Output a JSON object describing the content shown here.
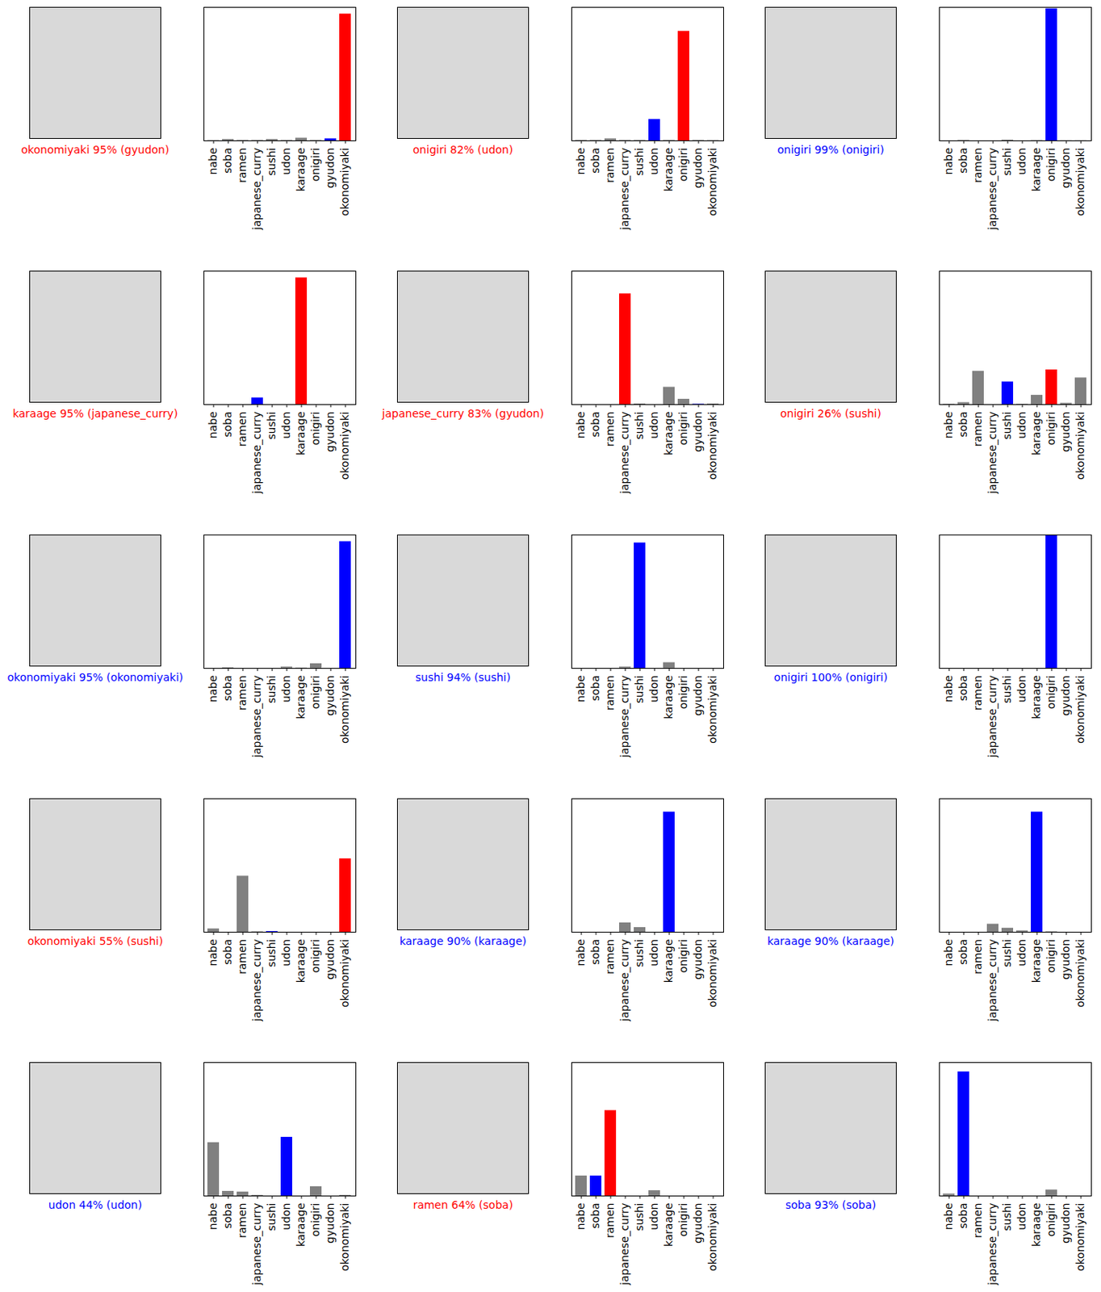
{
  "chart_data": [
    {
      "type": "bar",
      "xlabel": "okonomiyaki 95% (gyudon)",
      "categories": [
        "nabe",
        "soba",
        "ramen",
        "japanese_curry",
        "sushi",
        "udon",
        "karaage",
        "onigiri",
        "gyudon",
        "okonomiyaki"
      ],
      "values": [
        0.2,
        1,
        0.3,
        0.3,
        1,
        0.3,
        2,
        0.3,
        1.5,
        95
      ],
      "colors": [
        "#808080",
        "#808080",
        "#808080",
        "#808080",
        "#808080",
        "#808080",
        "#808080",
        "#808080",
        "#0000ff",
        "#ff0000"
      ],
      "ylim": [
        0,
        100
      ],
      "tick_labels": "x"
    },
    {
      "type": "bar",
      "xlabel": "onigiri 82% (udon)",
      "categories": [
        "nabe",
        "soba",
        "ramen",
        "japanese_curry",
        "sushi",
        "udon",
        "karaage",
        "onigiri",
        "gyudon",
        "okonomiyaki"
      ],
      "values": [
        0.3,
        0.3,
        1.5,
        0.3,
        0.3,
        16,
        0.3,
        82,
        0.3,
        0.2
      ],
      "colors": [
        "#808080",
        "#808080",
        "#808080",
        "#808080",
        "#808080",
        "#0000ff",
        "#808080",
        "#ff0000",
        "#808080",
        "#808080"
      ],
      "ylim": [
        0,
        100
      ],
      "tick_labels": "x"
    },
    {
      "type": "bar",
      "xlabel": "onigiri 99% (onigiri)",
      "categories": [
        "nabe",
        "soba",
        "ramen",
        "japanese_curry",
        "sushi",
        "udon",
        "karaage",
        "onigiri",
        "gyudon",
        "okonomiyaki"
      ],
      "values": [
        0,
        0.3,
        0,
        0,
        0.5,
        0,
        0.2,
        99,
        0.1,
        0.1
      ],
      "colors": [
        "#808080",
        "#808080",
        "#808080",
        "#808080",
        "#808080",
        "#808080",
        "#808080",
        "#0000ff",
        "#808080",
        "#808080"
      ],
      "ylim": [
        0,
        100
      ],
      "tick_labels": "x"
    },
    {
      "type": "bar",
      "xlabel": "karaage 95% (japanese_curry)",
      "categories": [
        "nabe",
        "soba",
        "ramen",
        "japanese_curry",
        "sushi",
        "udon",
        "karaage",
        "onigiri",
        "gyudon",
        "okonomiyaki"
      ],
      "values": [
        0,
        0,
        0,
        5,
        0,
        0,
        95,
        0,
        0,
        0
      ],
      "colors": [
        "#808080",
        "#808080",
        "#808080",
        "#0000ff",
        "#808080",
        "#808080",
        "#ff0000",
        "#808080",
        "#808080",
        "#808080"
      ],
      "ylim": [
        0,
        100
      ],
      "tick_labels": "x"
    },
    {
      "type": "bar",
      "xlabel": "japanese_curry 83% (gyudon)",
      "categories": [
        "nabe",
        "soba",
        "ramen",
        "japanese_curry",
        "sushi",
        "udon",
        "karaage",
        "onigiri",
        "gyudon",
        "okonomiyaki"
      ],
      "values": [
        0,
        0,
        0,
        83,
        0.5,
        0,
        13,
        4,
        0.3,
        0.5
      ],
      "colors": [
        "#808080",
        "#808080",
        "#808080",
        "#ff0000",
        "#808080",
        "#808080",
        "#808080",
        "#808080",
        "#0000ff",
        "#808080"
      ],
      "ylim": [
        0,
        100
      ],
      "tick_labels": "x"
    },
    {
      "type": "bar",
      "xlabel": "onigiri 26% (sushi)",
      "categories": [
        "nabe",
        "soba",
        "ramen",
        "japanese_curry",
        "sushi",
        "udon",
        "karaage",
        "onigiri",
        "gyudon",
        "okonomiyaki"
      ],
      "values": [
        0.3,
        1.5,
        25,
        0,
        17,
        0.3,
        7,
        26,
        1,
        20
      ],
      "colors": [
        "#808080",
        "#808080",
        "#808080",
        "#808080",
        "#0000ff",
        "#808080",
        "#808080",
        "#ff0000",
        "#808080",
        "#808080"
      ],
      "ylim": [
        0,
        100
      ],
      "tick_labels": "x"
    },
    {
      "type": "bar",
      "xlabel": "okonomiyaki 95% (okonomiyaki)",
      "categories": [
        "nabe",
        "soba",
        "ramen",
        "japanese_curry",
        "sushi",
        "udon",
        "karaage",
        "onigiri",
        "gyudon",
        "okonomiyaki"
      ],
      "values": [
        0,
        0.5,
        0,
        0,
        0,
        1,
        0.3,
        3.5,
        0,
        95
      ],
      "colors": [
        "#808080",
        "#808080",
        "#808080",
        "#808080",
        "#808080",
        "#808080",
        "#808080",
        "#808080",
        "#808080",
        "#0000ff"
      ],
      "ylim": [
        0,
        100
      ],
      "tick_labels": "x"
    },
    {
      "type": "bar",
      "xlabel": "sushi 94% (sushi)",
      "categories": [
        "nabe",
        "soba",
        "ramen",
        "japanese_curry",
        "sushi",
        "udon",
        "karaage",
        "onigiri",
        "gyudon",
        "okonomiyaki"
      ],
      "values": [
        0,
        0,
        0,
        1,
        94,
        0,
        4.3,
        0,
        0,
        0
      ],
      "colors": [
        "#808080",
        "#808080",
        "#808080",
        "#808080",
        "#0000ff",
        "#808080",
        "#808080",
        "#808080",
        "#808080",
        "#808080"
      ],
      "ylim": [
        0,
        100
      ],
      "tick_labels": "x"
    },
    {
      "type": "bar",
      "xlabel": "onigiri 100% (onigiri)",
      "categories": [
        "nabe",
        "soba",
        "ramen",
        "japanese_curry",
        "sushi",
        "udon",
        "karaage",
        "onigiri",
        "gyudon",
        "okonomiyaki"
      ],
      "values": [
        0,
        0,
        0,
        0,
        0,
        0,
        0,
        100,
        0,
        0
      ],
      "colors": [
        "#808080",
        "#808080",
        "#808080",
        "#808080",
        "#808080",
        "#808080",
        "#808080",
        "#0000ff",
        "#808080",
        "#808080"
      ],
      "ylim": [
        0,
        100
      ],
      "tick_labels": "x"
    },
    {
      "type": "bar",
      "xlabel": "okonomiyaki 55% (sushi)",
      "categories": [
        "nabe",
        "soba",
        "ramen",
        "japanese_curry",
        "sushi",
        "udon",
        "karaage",
        "onigiri",
        "gyudon",
        "okonomiyaki"
      ],
      "values": [
        2.5,
        0,
        42,
        0.3,
        0.5,
        0,
        0,
        0,
        0,
        55
      ],
      "colors": [
        "#808080",
        "#808080",
        "#808080",
        "#808080",
        "#0000ff",
        "#808080",
        "#808080",
        "#808080",
        "#808080",
        "#ff0000"
      ],
      "ylim": [
        0,
        100
      ],
      "tick_labels": "x"
    },
    {
      "type": "bar",
      "xlabel": "karaage 90% (karaage)",
      "categories": [
        "nabe",
        "soba",
        "ramen",
        "japanese_curry",
        "sushi",
        "udon",
        "karaage",
        "onigiri",
        "gyudon",
        "okonomiyaki"
      ],
      "values": [
        0,
        0,
        0,
        7,
        3.5,
        0,
        90,
        0,
        0,
        0
      ],
      "colors": [
        "#808080",
        "#808080",
        "#808080",
        "#808080",
        "#808080",
        "#808080",
        "#0000ff",
        "#808080",
        "#808080",
        "#808080"
      ],
      "ylim": [
        0,
        100
      ],
      "tick_labels": "x"
    },
    {
      "type": "bar",
      "xlabel": "karaage 90% (karaage)",
      "categories": [
        "nabe",
        "soba",
        "ramen",
        "japanese_curry",
        "sushi",
        "udon",
        "karaage",
        "onigiri",
        "gyudon",
        "okonomiyaki"
      ],
      "values": [
        0,
        0,
        0,
        6,
        3,
        1,
        90,
        0.3,
        0,
        0
      ],
      "colors": [
        "#808080",
        "#808080",
        "#808080",
        "#808080",
        "#808080",
        "#808080",
        "#0000ff",
        "#808080",
        "#808080",
        "#808080"
      ],
      "ylim": [
        0,
        100
      ],
      "tick_labels": "x"
    },
    {
      "type": "bar",
      "xlabel": "udon 44% (udon)",
      "categories": [
        "nabe",
        "soba",
        "ramen",
        "japanese_curry",
        "sushi",
        "udon",
        "karaage",
        "onigiri",
        "gyudon",
        "okonomiyaki"
      ],
      "values": [
        40,
        3.5,
        3,
        0.5,
        0,
        44,
        0,
        7,
        0,
        0.5
      ],
      "colors": [
        "#808080",
        "#808080",
        "#808080",
        "#808080",
        "#808080",
        "#0000ff",
        "#808080",
        "#808080",
        "#808080",
        "#808080"
      ],
      "ylim": [
        0,
        100
      ],
      "tick_labels": "x"
    },
    {
      "type": "bar",
      "xlabel": "ramen 64% (soba)",
      "categories": [
        "nabe",
        "soba",
        "ramen",
        "japanese_curry",
        "sushi",
        "udon",
        "karaage",
        "onigiri",
        "gyudon",
        "okonomiyaki"
      ],
      "values": [
        15,
        15,
        64,
        0,
        0,
        4,
        0,
        0,
        0,
        0
      ],
      "colors": [
        "#808080",
        "#0000ff",
        "#ff0000",
        "#808080",
        "#808080",
        "#808080",
        "#808080",
        "#808080",
        "#808080",
        "#808080"
      ],
      "ylim": [
        0,
        100
      ],
      "tick_labels": "x"
    },
    {
      "type": "bar",
      "xlabel": "soba 93% (soba)",
      "categories": [
        "nabe",
        "soba",
        "ramen",
        "japanese_curry",
        "sushi",
        "udon",
        "karaage",
        "onigiri",
        "gyudon",
        "okonomiyaki"
      ],
      "values": [
        1.5,
        93,
        0,
        0,
        0,
        0,
        0,
        4.5,
        0,
        0
      ],
      "colors": [
        "#808080",
        "#0000ff",
        "#808080",
        "#808080",
        "#808080",
        "#808080",
        "#808080",
        "#808080",
        "#808080",
        "#808080"
      ],
      "ylim": [
        0,
        100
      ],
      "tick_labels": "x"
    }
  ]
}
